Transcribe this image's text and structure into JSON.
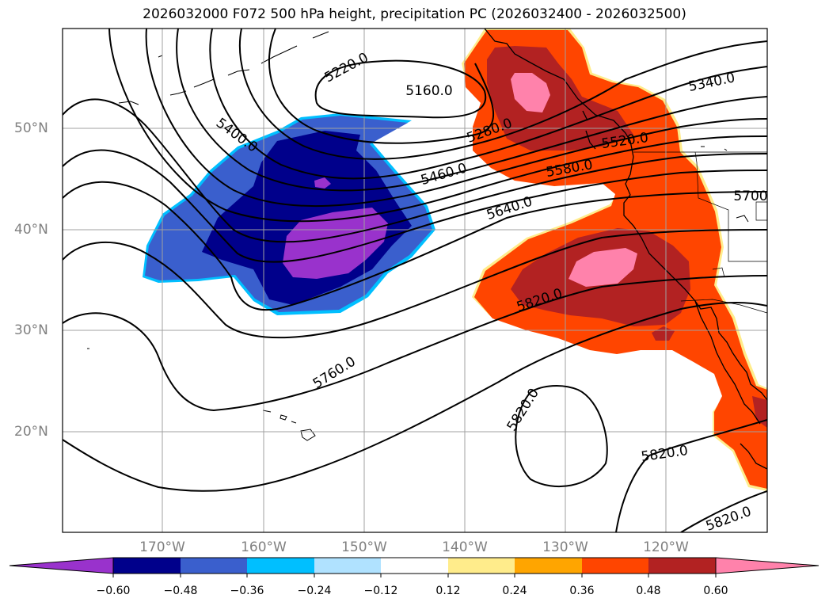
{
  "title": "2026032000 F072 500 hPa height, precipitation PC (2026032400 - 2026032500)",
  "lon_labels": [
    "170°W",
    "160°W",
    "150°W",
    "140°W",
    "130°W",
    "120°W"
  ],
  "lat_labels": [
    "50°N",
    "40°N",
    "30°N",
    "20°N"
  ],
  "contour_labels": [
    "5220.0",
    "5160.0",
    "5340.0",
    "5400.0",
    "5280.0",
    "5460.0",
    "5520.0",
    "5580.0",
    "5700",
    "5640.0",
    "5820.0",
    "5760.0",
    "5820.0",
    "5820.0",
    "5820.0"
  ],
  "colorbar": {
    "ticks": [
      "−0.60",
      "−0.48",
      "−0.36",
      "−0.24",
      "−0.12",
      "0.12",
      "0.24",
      "0.36",
      "0.48",
      "0.60"
    ],
    "colors": [
      "#9932cc",
      "#00008b",
      "#3a5fcd",
      "#00bfff",
      "#b0e2ff",
      "#ffffff",
      "#ffec8b",
      "#ffa500",
      "#ff4500",
      "#b22222",
      "#ff82ab"
    ]
  },
  "colors": {
    "neg_purple": "#9932cc",
    "neg_navy": "#00008b",
    "neg_blue": "#3a5fcd",
    "neg_cyan": "#00bfff",
    "pos_orange": "#ff4500",
    "pos_red": "#b22222",
    "pos_pink": "#ff82ab",
    "pos_yellow": "#ffec8b"
  }
}
